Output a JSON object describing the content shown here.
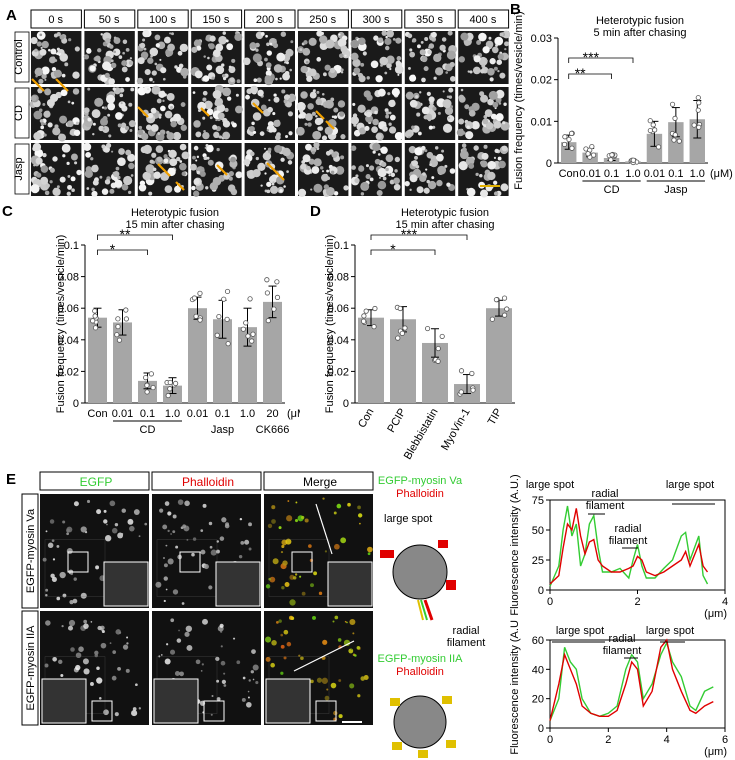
{
  "panel_letters": {
    "a": "A",
    "b": "B",
    "c": "C",
    "d": "D",
    "e": "E"
  },
  "panel_a": {
    "times": [
      "0 s",
      "50 s",
      "100 s",
      "150 s",
      "200 s",
      "250 s",
      "300 s",
      "350 s",
      "400 s"
    ],
    "rows": [
      "Control",
      "CD",
      "Jasp"
    ]
  },
  "panel_e": {
    "columns": [
      "EGFP",
      "Phalloidin",
      "Merge"
    ],
    "rows": [
      "EGFP-myosin Va",
      "EGFP-myosin IIA"
    ],
    "schematic_top": {
      "line1": "EGFP-myosin Va",
      "line2": "Phalloidin",
      "large_spot": "large spot",
      "radial_1": "radial",
      "radial_2": "filament"
    },
    "schematic_bottom": {
      "line1": "EGFP-myosin IIA",
      "line2": "Phalloidin"
    }
  },
  "colors": {
    "green": "#33cc33",
    "red": "#e00000",
    "bar": "#a6a6a6",
    "arrow": "#f0a000"
  },
  "chart_data": [
    {
      "id": "B",
      "type": "bar",
      "title": "Heterotypic fusion",
      "subtitle": "5 min after chasing",
      "ylabel": "Fusion frequency (times/vesicle/min)",
      "ylim": [
        0,
        0.03
      ],
      "yticks": [
        "0",
        "0.01",
        "0.02",
        "0.03"
      ],
      "categories": [
        "Con",
        "0.01",
        "0.1",
        "1.0",
        "0.01",
        "0.1",
        "1.0"
      ],
      "unit": "(μM)",
      "groups": [
        {
          "label": "CD"
        },
        {
          "label": "Jasp"
        }
      ],
      "values": [
        0.005,
        0.0025,
        0.0012,
        0.0004,
        0.007,
        0.0098,
        0.0105
      ],
      "errors": [
        0.0017,
        0.001,
        0.0006,
        0.0002,
        0.003,
        0.0035,
        0.0045
      ],
      "significance": [
        "***",
        "**"
      ]
    },
    {
      "id": "C",
      "type": "bar",
      "title": "Heterotypic fusion",
      "subtitle": "15 min after chasing",
      "ylabel": "Fusion frequency (times/vesicle/min)",
      "ylim": [
        0,
        0.1
      ],
      "yticks": [
        "0",
        "0.02",
        "0.04",
        "0.06",
        "0.08",
        "0.1"
      ],
      "categories": [
        "Con",
        "0.01",
        "0.1",
        "1.0",
        "0.01",
        "0.1",
        "1.0",
        "20"
      ],
      "unit": "(μM)",
      "groups": [
        {
          "label": "CD"
        },
        {
          "label": "Jasp"
        },
        {
          "label": "CK666"
        }
      ],
      "values": [
        0.054,
        0.051,
        0.014,
        0.011,
        0.06,
        0.053,
        0.048,
        0.064
      ],
      "errors": [
        0.006,
        0.008,
        0.005,
        0.005,
        0.007,
        0.012,
        0.012,
        0.01
      ],
      "significance": [
        "**",
        "*"
      ]
    },
    {
      "id": "D",
      "type": "bar",
      "title": "Heterotypic fusion",
      "subtitle": "15 min after chasing",
      "ylabel": "Fusion frequency (times/vesicle/min)",
      "ylim": [
        0,
        0.1
      ],
      "yticks": [
        "0",
        "0.02",
        "0.04",
        "0.06",
        "0.08",
        "0.1"
      ],
      "categories": [
        "Con",
        "PCIP",
        "Blebbistatin",
        "MyoVin-1",
        "TIP"
      ],
      "values": [
        0.054,
        0.053,
        0.038,
        0.012,
        0.06
      ],
      "errors": [
        0.005,
        0.008,
        0.009,
        0.006,
        0.005
      ],
      "significance": [
        "***",
        "*"
      ]
    },
    {
      "id": "E-top",
      "type": "line",
      "ylabel": "Fluorescence intensity (A.U.)",
      "xlabel": "(μm)",
      "xlim": [
        0,
        4
      ],
      "ylim": [
        0,
        75
      ],
      "xticks": [
        "0",
        "2",
        "4"
      ],
      "yticks": [
        "0",
        "25",
        "50",
        "75"
      ],
      "annotations": {
        "spot1": "large spot",
        "radial1": "radial",
        "radial2": "filament",
        "filament_a": "radial",
        "filament_b": "filament",
        "spot2": "large spot"
      },
      "x": [
        0,
        0.2,
        0.3,
        0.4,
        0.5,
        0.6,
        0.7,
        0.8,
        0.9,
        1.0,
        1.1,
        1.2,
        1.4,
        1.6,
        1.8,
        1.9,
        2.0,
        2.1,
        2.2,
        2.4,
        2.6,
        2.8,
        3.0,
        3.1,
        3.2,
        3.4,
        3.5,
        3.6
      ],
      "series": [
        {
          "name": "green",
          "values": [
            3,
            20,
            50,
            70,
            45,
            55,
            20,
            30,
            55,
            62,
            35,
            15,
            15,
            18,
            10,
            25,
            38,
            20,
            10,
            10,
            18,
            25,
            45,
            48,
            25,
            45,
            12,
            5
          ]
        },
        {
          "name": "red",
          "values": [
            5,
            12,
            35,
            55,
            50,
            68,
            45,
            30,
            40,
            42,
            25,
            20,
            15,
            15,
            18,
            20,
            28,
            25,
            15,
            12,
            15,
            20,
            25,
            32,
            20,
            38,
            20,
            15
          ]
        }
      ]
    },
    {
      "id": "E-bottom",
      "type": "line",
      "ylabel": "Fluorescence intensity (A.U.)",
      "xlabel": "(μm)",
      "xlim": [
        0,
        6
      ],
      "ylim": [
        0,
        60
      ],
      "xticks": [
        "0",
        "2",
        "4",
        "6"
      ],
      "yticks": [
        "0",
        "20",
        "40",
        "60"
      ],
      "annotations": {
        "spot1": "large spot",
        "radial1": "radial",
        "radial2": "filament",
        "spot2": "large spot"
      },
      "x": [
        0,
        0.3,
        0.5,
        0.7,
        0.9,
        1.1,
        1.4,
        1.7,
        2.0,
        2.3,
        2.6,
        2.8,
        3.0,
        3.2,
        3.5,
        3.8,
        4.0,
        4.2,
        4.5,
        4.8,
        5.0,
        5.3,
        5.6
      ],
      "series": [
        {
          "name": "green",
          "values": [
            5,
            20,
            55,
            45,
            40,
            20,
            10,
            8,
            10,
            15,
            40,
            50,
            45,
            20,
            30,
            50,
            58,
            45,
            35,
            15,
            12,
            25,
            28
          ]
        },
        {
          "name": "red",
          "values": [
            5,
            30,
            50,
            40,
            30,
            15,
            10,
            8,
            8,
            12,
            30,
            45,
            40,
            15,
            25,
            55,
            60,
            40,
            25,
            12,
            10,
            15,
            18
          ]
        }
      ]
    }
  ]
}
